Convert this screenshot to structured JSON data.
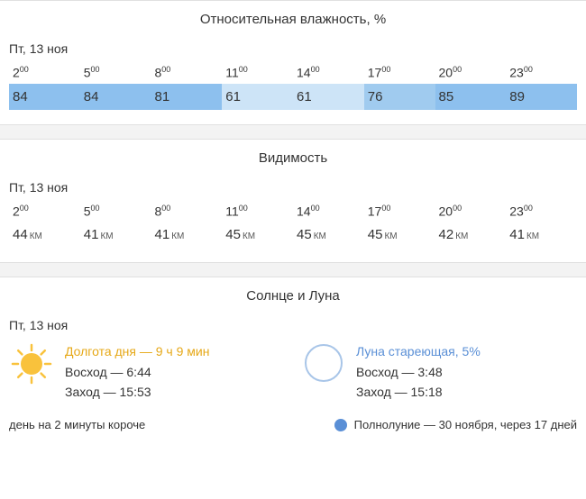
{
  "humidity": {
    "title": "Относительная влажность, %",
    "date": "Пт, 13 ноя",
    "hours": [
      {
        "h": "2",
        "m": "00"
      },
      {
        "h": "5",
        "m": "00"
      },
      {
        "h": "8",
        "m": "00"
      },
      {
        "h": "11",
        "m": "00"
      },
      {
        "h": "14",
        "m": "00"
      },
      {
        "h": "17",
        "m": "00"
      },
      {
        "h": "20",
        "m": "00"
      },
      {
        "h": "23",
        "m": "00"
      }
    ],
    "values": [
      84,
      84,
      81,
      61,
      61,
      76,
      85,
      89
    ],
    "cell_colors": [
      "#8dc0ee",
      "#8dc0ee",
      "#8dc0ee",
      "#cde4f7",
      "#cde4f7",
      "#a0cbef",
      "#8dc0ee",
      "#8dc0ee"
    ]
  },
  "visibility": {
    "title": "Видимость",
    "date": "Пт, 13 ноя",
    "unit": "КМ",
    "hours": [
      {
        "h": "2",
        "m": "00"
      },
      {
        "h": "5",
        "m": "00"
      },
      {
        "h": "8",
        "m": "00"
      },
      {
        "h": "11",
        "m": "00"
      },
      {
        "h": "14",
        "m": "00"
      },
      {
        "h": "17",
        "m": "00"
      },
      {
        "h": "20",
        "m": "00"
      },
      {
        "h": "23",
        "m": "00"
      }
    ],
    "values": [
      44,
      41,
      41,
      45,
      45,
      45,
      42,
      41
    ]
  },
  "sunmoon": {
    "title": "Солнце и Луна",
    "date": "Пт, 13 ноя",
    "sun": {
      "daylength": "Долгота дня — 9 ч 9 мин",
      "rise": "Восход — 6:44",
      "set": "Заход — 15:53"
    },
    "moon": {
      "phase": "Луна стареющая, 5%",
      "rise": "Восход — 3:48",
      "set": "Заход — 15:18"
    },
    "footer_left": "день на 2 минуты короче",
    "footer_right": "Полнолуние — 30 ноября, через 17 дней"
  }
}
